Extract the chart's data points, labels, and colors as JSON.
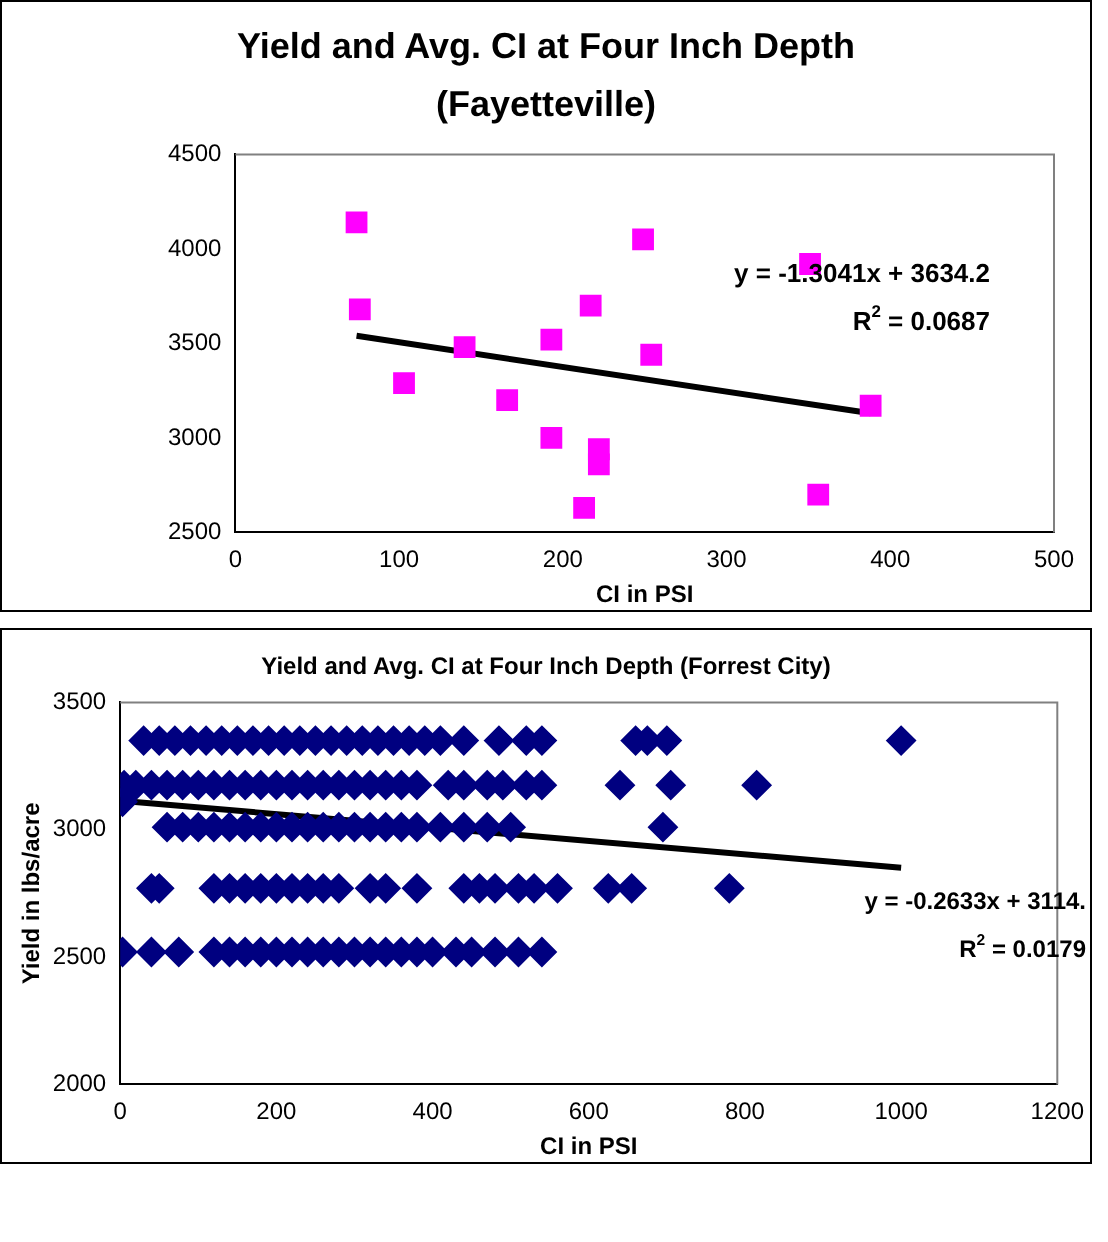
{
  "chart_data": [
    {
      "type": "scatter",
      "title": "Yield and Avg. CI at Four Inch Depth (Fayetteville)",
      "xlabel": "CI in PSI",
      "grid": false,
      "legend": false,
      "xlim": [
        0,
        500
      ],
      "xticks": [
        0,
        100,
        200,
        300,
        400,
        500
      ],
      "ylim": [
        2500,
        4500
      ],
      "yticks": [
        2500,
        3000,
        3500,
        4000,
        4500
      ],
      "series": [
        {
          "marker": "square",
          "color": "#ff00ff",
          "x": [
            74,
            76,
            103,
            140,
            166,
            193,
            193,
            213,
            217,
            222,
            222,
            249,
            254,
            351,
            356,
            388
          ],
          "values": [
            4140,
            3680,
            3290,
            3480,
            3200,
            3520,
            3000,
            2630,
            3700,
            2940,
            2860,
            4050,
            3440,
            3920,
            2700,
            3170
          ]
        },
        {
          "type": "line",
          "marker": "none",
          "color": "#000000",
          "x": [
            74,
            388
          ],
          "values": [
            3540,
            3130
          ]
        }
      ],
      "annotations": [
        "y = -1.3041x + 3634.2",
        "R$^{2}$ = 0.0687"
      ]
    },
    {
      "type": "scatter",
      "title": "Yield and Avg. CI at Four Inch Depth (Forrest City)",
      "xlabel": "CI in PSI",
      "ylabel": "Yield in lbs/acre",
      "marker": "diamond",
      "grid": false,
      "legend": false,
      "xlim": [
        0,
        1200
      ],
      "xticks": [
        0,
        200,
        400,
        600,
        800,
        1000,
        1200
      ],
      "ylim": [
        2000,
        3500
      ],
      "yticks": [
        2000,
        2500,
        3000,
        3500
      ],
      "series": [
        {
          "color": "#000080",
          "x": [
            30,
            50,
            70,
            90,
            110,
            130,
            150,
            170,
            190,
            210,
            230,
            250,
            270,
            290,
            310,
            330,
            350,
            370,
            390,
            410,
            440,
            485,
            520,
            540,
            660,
            675,
            700,
            1000
          ],
          "values": [
            3350,
            3350,
            3350,
            3350,
            3350,
            3350,
            3350,
            3350,
            3350,
            3350,
            3350,
            3350,
            3350,
            3350,
            3350,
            3350,
            3350,
            3350,
            3350,
            3350,
            3350,
            3350,
            3350,
            3350,
            3350,
            3350,
            3350,
            3350
          ]
        },
        {
          "color": "#000080",
          "x": [
            5,
            20,
            40,
            60,
            80,
            100,
            120,
            140,
            160,
            180,
            200,
            220,
            240,
            260,
            280,
            300,
            320,
            340,
            360,
            380,
            420,
            440,
            470,
            490,
            520,
            540,
            640,
            705,
            815
          ],
          "values": [
            3175,
            3175,
            3175,
            3175,
            3175,
            3175,
            3175,
            3175,
            3175,
            3175,
            3175,
            3175,
            3175,
            3175,
            3175,
            3175,
            3175,
            3175,
            3175,
            3175,
            3175,
            3175,
            3175,
            3175,
            3175,
            3175,
            3175,
            3175,
            3175
          ]
        },
        {
          "color": "#000080",
          "x": [
            3,
            60,
            80,
            100,
            120,
            140,
            160,
            180,
            200,
            220,
            240,
            260,
            280,
            300,
            320,
            340,
            360,
            380,
            410,
            440,
            470,
            500,
            695
          ],
          "values": [
            3110,
            3010,
            3010,
            3010,
            3010,
            3010,
            3010,
            3010,
            3010,
            3010,
            3010,
            3010,
            3010,
            3010,
            3010,
            3010,
            3010,
            3010,
            3010,
            3010,
            3010,
            3010,
            3010
          ]
        },
        {
          "color": "#000080",
          "x": [
            40,
            50,
            120,
            140,
            160,
            180,
            200,
            220,
            240,
            260,
            280,
            320,
            340,
            380,
            440,
            460,
            480,
            510,
            530,
            560,
            625,
            655,
            780
          ],
          "values": [
            2770,
            2770,
            2770,
            2770,
            2770,
            2770,
            2770,
            2770,
            2770,
            2770,
            2770,
            2770,
            2770,
            2770,
            2770,
            2770,
            2770,
            2770,
            2770,
            2770,
            2770,
            2770,
            2770
          ]
        },
        {
          "color": "#000080",
          "x": [
            3,
            40,
            75,
            120,
            140,
            160,
            180,
            200,
            220,
            240,
            260,
            280,
            300,
            320,
            340,
            360,
            380,
            400,
            430,
            450,
            480,
            510,
            540
          ],
          "values": [
            2520,
            2520,
            2520,
            2520,
            2520,
            2520,
            2520,
            2520,
            2520,
            2520,
            2520,
            2520,
            2520,
            2520,
            2520,
            2520,
            2520,
            2520,
            2520,
            2520,
            2520,
            2520,
            2520
          ]
        },
        {
          "type": "line",
          "marker": "none",
          "color": "#000000",
          "x": [
            0,
            1000
          ],
          "values": [
            3114,
            2851
          ]
        }
      ],
      "annotations": [
        "y = -0.2633x + 3114.",
        "R$^{2}$ = 0.0179"
      ]
    }
  ]
}
